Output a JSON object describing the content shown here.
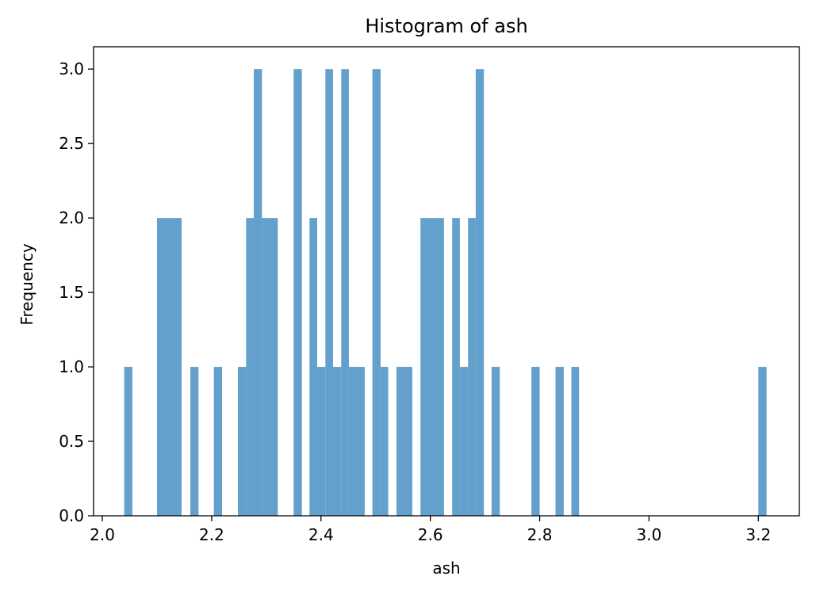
{
  "chart_data": {
    "type": "bar",
    "title": "Histogram of ash",
    "xlabel": "ash",
    "ylabel": "Frequency",
    "xlim": [
      1.984,
      3.275
    ],
    "ylim": [
      0,
      3.15
    ],
    "xticks": [
      "2.0",
      "2.2",
      "2.4",
      "2.6",
      "2.8",
      "3.0",
      "3.2"
    ],
    "yticks": [
      "0.0",
      "0.5",
      "1.0",
      "1.5",
      "2.0",
      "2.5",
      "3.0"
    ],
    "grid": false,
    "bar_color": "#63a0cb",
    "bins": [
      {
        "x0": 2.04,
        "x1": 2.055,
        "count": 1
      },
      {
        "x0": 2.1,
        "x1": 2.145,
        "count": 2
      },
      {
        "x0": 2.161,
        "x1": 2.176,
        "count": 1
      },
      {
        "x0": 2.204,
        "x1": 2.219,
        "count": 1
      },
      {
        "x0": 2.248,
        "x1": 2.263,
        "count": 1
      },
      {
        "x0": 2.263,
        "x1": 2.277,
        "count": 2
      },
      {
        "x0": 2.277,
        "x1": 2.292,
        "count": 3
      },
      {
        "x0": 2.292,
        "x1": 2.321,
        "count": 2
      },
      {
        "x0": 2.35,
        "x1": 2.365,
        "count": 3
      },
      {
        "x0": 2.379,
        "x1": 2.393,
        "count": 2
      },
      {
        "x0": 2.393,
        "x1": 2.408,
        "count": 1
      },
      {
        "x0": 2.408,
        "x1": 2.422,
        "count": 3
      },
      {
        "x0": 2.422,
        "x1": 2.437,
        "count": 1
      },
      {
        "x0": 2.437,
        "x1": 2.451,
        "count": 3
      },
      {
        "x0": 2.451,
        "x1": 2.48,
        "count": 1
      },
      {
        "x0": 2.494,
        "x1": 2.509,
        "count": 3
      },
      {
        "x0": 2.509,
        "x1": 2.523,
        "count": 1
      },
      {
        "x0": 2.538,
        "x1": 2.567,
        "count": 1
      },
      {
        "x0": 2.582,
        "x1": 2.625,
        "count": 2
      },
      {
        "x0": 2.64,
        "x1": 2.654,
        "count": 2
      },
      {
        "x0": 2.654,
        "x1": 2.669,
        "count": 1
      },
      {
        "x0": 2.669,
        "x1": 2.683,
        "count": 2
      },
      {
        "x0": 2.683,
        "x1": 2.698,
        "count": 3
      },
      {
        "x0": 2.712,
        "x1": 2.727,
        "count": 1
      },
      {
        "x0": 2.785,
        "x1": 2.8,
        "count": 1
      },
      {
        "x0": 2.829,
        "x1": 2.844,
        "count": 1
      },
      {
        "x0": 2.858,
        "x1": 2.872,
        "count": 1
      },
      {
        "x0": 3.2,
        "x1": 3.215,
        "count": 1
      }
    ]
  }
}
